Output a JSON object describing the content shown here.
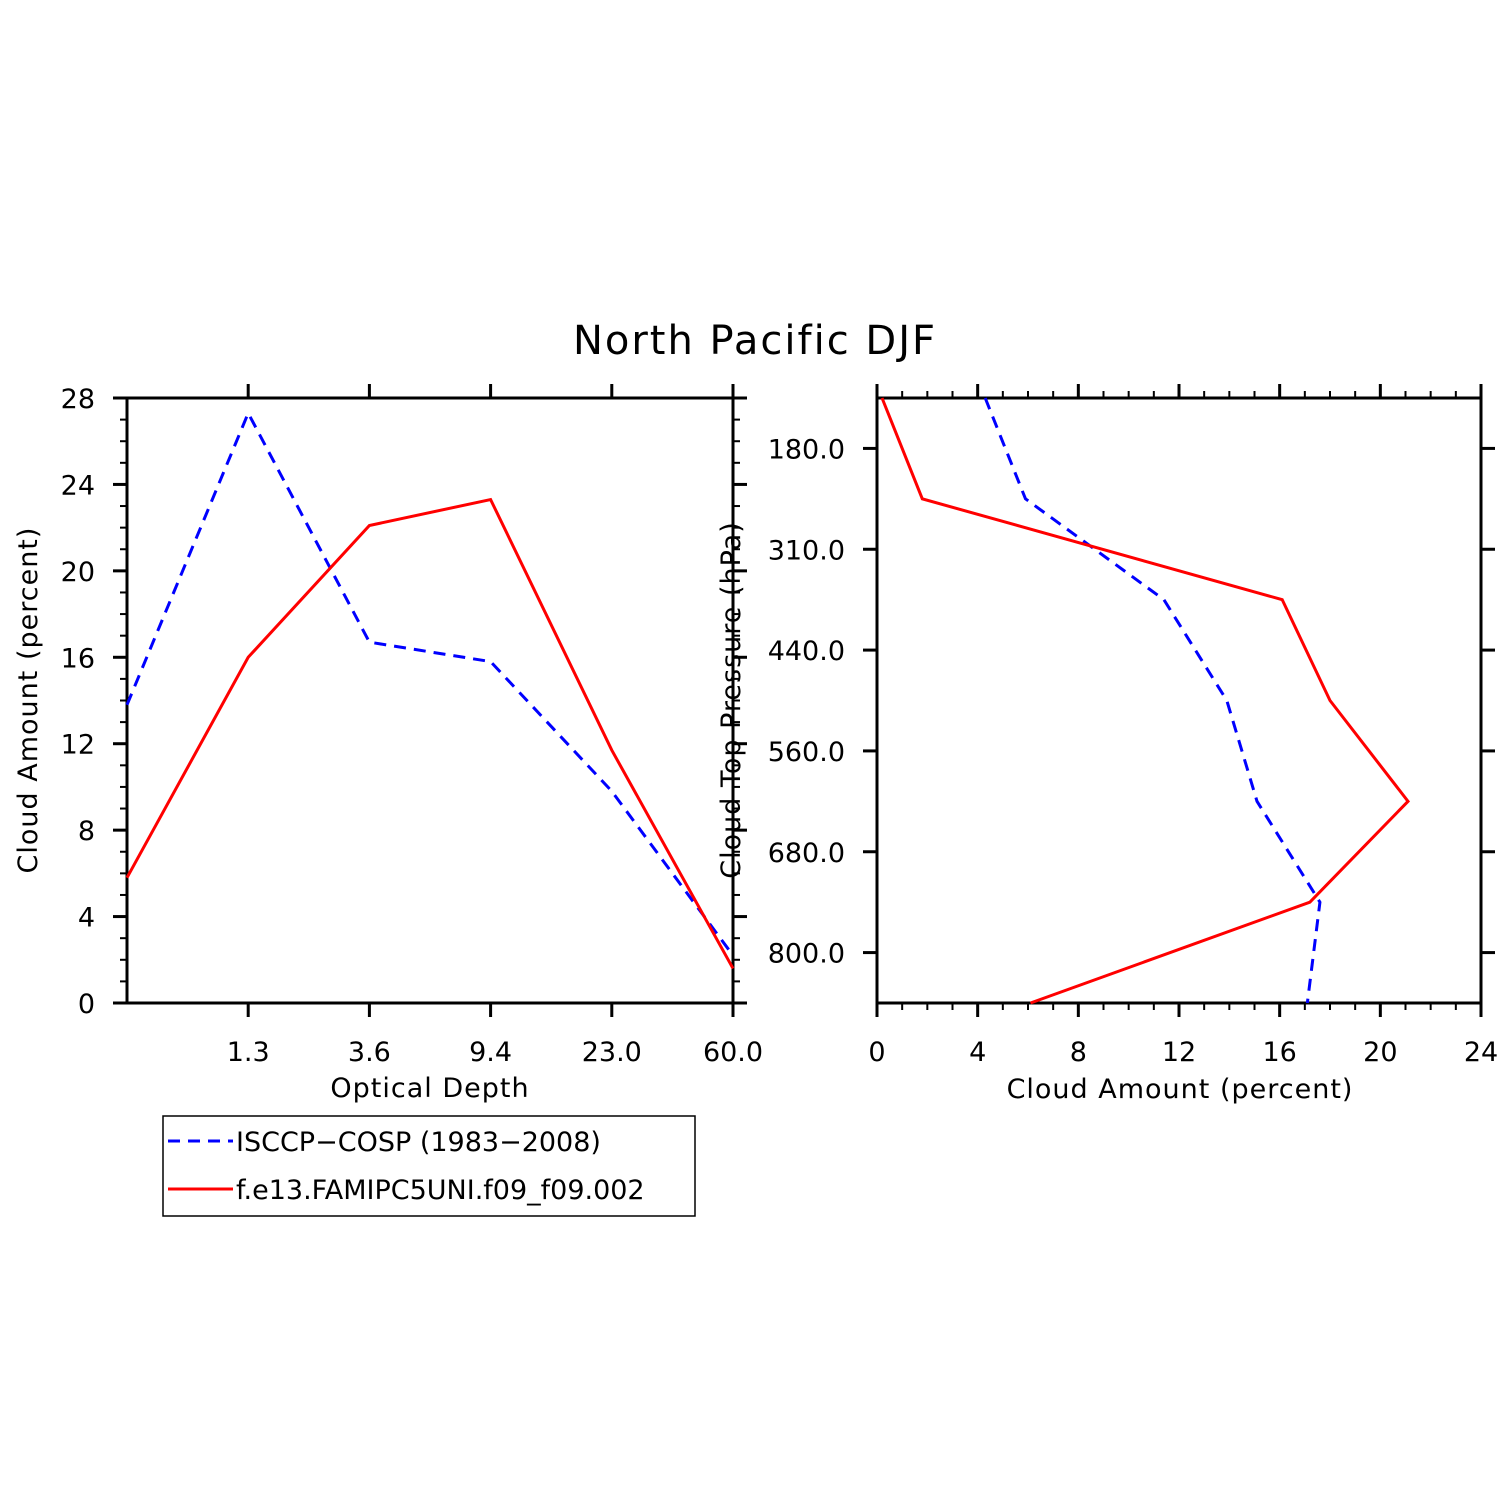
{
  "title": "North Pacific DJF",
  "colors": {
    "obs": "#0000ff",
    "model": "#ff0000",
    "axis": "#000000"
  },
  "legend": [
    {
      "label": "ISCCP−COSP (1983−2008)",
      "style": "dashed",
      "color": "#0000ff"
    },
    {
      "label": "f.e13.FAMIPC5UNI.f09_f09.002",
      "style": "solid",
      "color": "#ff0000"
    }
  ],
  "chart_data": [
    {
      "type": "line",
      "xlabel": "Optical Depth",
      "ylabel": "Cloud Amount (percent)",
      "x_tick_labels": [
        "1.3",
        "3.6",
        "9.4",
        "23.0",
        "60.0"
      ],
      "x_bins": [
        0,
        1,
        2,
        3,
        4,
        5,
        6
      ],
      "ylim": [
        0,
        28
      ],
      "y_ticks": [
        0,
        4,
        8,
        12,
        16,
        20,
        24,
        28
      ],
      "series": [
        {
          "name": "ISCCP−COSP (1983−2008)",
          "values": [
            13.8,
            27.3,
            16.7,
            15.8,
            9.8,
            2.2
          ]
        },
        {
          "name": "f.e13.FAMIPC5UNI.f09_f09.002",
          "values": [
            5.8,
            16.0,
            22.1,
            23.3,
            11.7,
            1.6
          ]
        }
      ]
    },
    {
      "type": "line",
      "xlabel": "Cloud Amount (percent)",
      "ylabel": "Cloud Top Pressure (hPa)",
      "xlim": [
        0,
        24
      ],
      "x_ticks": [
        0,
        4,
        8,
        12,
        16,
        20,
        24
      ],
      "y_tick_labels": [
        "180.0",
        "310.0",
        "440.0",
        "560.0",
        "680.0",
        "800.0"
      ],
      "y_bins": [
        0,
        1,
        2,
        3,
        4,
        5,
        6
      ],
      "series": [
        {
          "name": "ISCCP−COSP (1983−2008)",
          "values": [
            4.3,
            5.9,
            11.4,
            13.9,
            15.1,
            17.6,
            17.1
          ]
        },
        {
          "name": "f.e13.FAMIPC5UNI.f09_f09.002",
          "values": [
            0.2,
            1.8,
            16.1,
            18.0,
            21.1,
            17.2,
            6.1
          ]
        }
      ]
    }
  ]
}
